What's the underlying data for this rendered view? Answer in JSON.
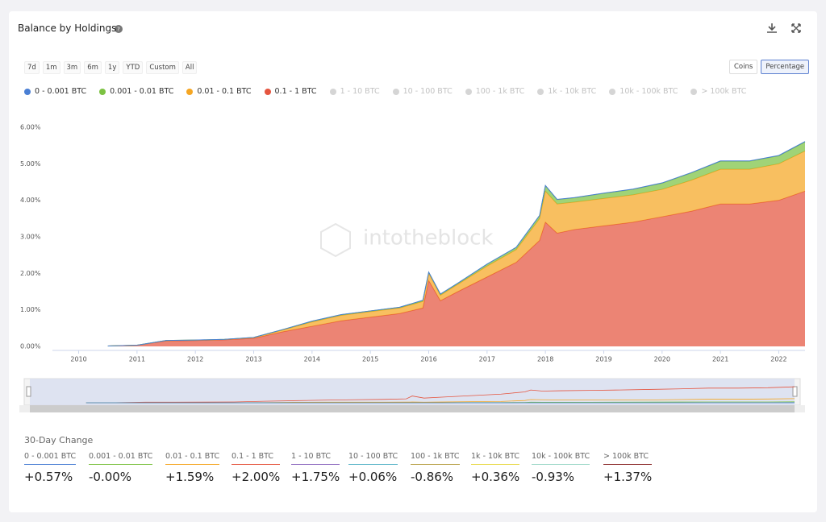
{
  "header": {
    "title": "Balance by Holdings"
  },
  "controls": {
    "ranges": [
      "7d",
      "1m",
      "3m",
      "6m",
      "1y",
      "YTD",
      "Custom",
      "All"
    ],
    "units": [
      "Coins",
      "Percentage"
    ],
    "selected_unit": 1
  },
  "chart_data": {
    "type": "area",
    "stacked": true,
    "watermark": "intotheblock",
    "x": [
      2010.5,
      2011,
      2011.5,
      2012,
      2012.5,
      2013,
      2013.5,
      2014,
      2014.5,
      2015,
      2015.5,
      2015.9,
      2016,
      2016.2,
      2016.5,
      2017,
      2017.5,
      2017.9,
      2018,
      2018.2,
      2018.5,
      2019,
      2019.5,
      2020,
      2020.5,
      2021,
      2021.5,
      2022,
      2022.45
    ],
    "xlim": [
      2009.55,
      2022.45
    ],
    "xticks": [
      2010,
      2011,
      2012,
      2013,
      2014,
      2015,
      2016,
      2017,
      2018,
      2019,
      2020,
      2021,
      2022
    ],
    "ylim": [
      0,
      6
    ],
    "yticks": [
      {
        "value": 0,
        "label": "0.00%"
      },
      {
        "value": 1,
        "label": "1.00%"
      },
      {
        "value": 2,
        "label": "2.00%"
      },
      {
        "value": 3,
        "label": "3.00%"
      },
      {
        "value": 4,
        "label": "4.00%"
      },
      {
        "value": 5,
        "label": "5.00%"
      },
      {
        "value": 6,
        "label": "6.00%"
      }
    ],
    "grid": false,
    "series": [
      {
        "name": "0 - 0.001 BTC",
        "color": "#4a7fd4",
        "values": [
          0,
          0,
          0,
          0.001,
          0.001,
          0.001,
          0.002,
          0.002,
          0.002,
          0.002,
          0.002,
          0.003,
          0.003,
          0.003,
          0.003,
          0.004,
          0.004,
          0.005,
          0.006,
          0.006,
          0.006,
          0.006,
          0.006,
          0.007,
          0.008,
          0.008,
          0.008,
          0.008,
          0.009
        ]
      },
      {
        "name": "0.001 - 0.01 BTC",
        "color": "#7cc242",
        "values": [
          0.001,
          0.001,
          0.002,
          0.003,
          0.003,
          0.005,
          0.01,
          0.02,
          0.02,
          0.02,
          0.02,
          0.03,
          0.03,
          0.03,
          0.03,
          0.05,
          0.06,
          0.08,
          0.15,
          0.12,
          0.12,
          0.14,
          0.15,
          0.17,
          0.2,
          0.22,
          0.22,
          0.22,
          0.25
        ]
      },
      {
        "name": "0.01 - 0.1 BTC",
        "color": "#f5a623",
        "values": [
          0.001,
          0.003,
          0.01,
          0.01,
          0.01,
          0.02,
          0.05,
          0.12,
          0.15,
          0.15,
          0.15,
          0.18,
          0.2,
          0.15,
          0.2,
          0.3,
          0.35,
          0.6,
          0.85,
          0.8,
          0.75,
          0.75,
          0.75,
          0.75,
          0.85,
          0.95,
          0.95,
          1.0,
          1.1
        ]
      },
      {
        "name": "0.1 - 1 BTC",
        "color": "#e5553f",
        "values": [
          0.01,
          0.03,
          0.15,
          0.16,
          0.18,
          0.22,
          0.4,
          0.55,
          0.7,
          0.8,
          0.9,
          1.05,
          1.8,
          1.25,
          1.5,
          1.9,
          2.3,
          2.9,
          3.4,
          3.1,
          3.2,
          3.3,
          3.4,
          3.55,
          3.7,
          3.9,
          3.9,
          4.0,
          4.25
        ]
      }
    ],
    "hidden_series": [
      "1 - 10 BTC",
      "10 - 100 BTC",
      "100 - 1k BTC",
      "1k - 10k BTC",
      "10k - 100k BTC",
      "> 100k BTC"
    ]
  },
  "change_30d": {
    "title": "30-Day Change",
    "items": [
      {
        "label": "0 - 0.001 BTC",
        "value": "+0.57%",
        "color": "#4a7fd4"
      },
      {
        "label": "0.001 - 0.01 BTC",
        "value": "-0.00%",
        "color": "#7cc242"
      },
      {
        "label": "0.01 - 0.1 BTC",
        "value": "+1.59%",
        "color": "#f5a623"
      },
      {
        "label": "0.1 - 1 BTC",
        "value": "+2.00%",
        "color": "#e5553f"
      },
      {
        "label": "1 - 10 BTC",
        "value": "+1.75%",
        "color": "#8e6bbf"
      },
      {
        "label": "10 - 100 BTC",
        "value": "+0.06%",
        "color": "#5bb5c8"
      },
      {
        "label": "100 - 1k BTC",
        "value": "-0.86%",
        "color": "#b8a24a"
      },
      {
        "label": "1k - 10k BTC",
        "value": "+0.36%",
        "color": "#e8d94a"
      },
      {
        "label": "10k - 100k BTC",
        "value": "-0.93%",
        "color": "#9ed8c8"
      },
      {
        "label": "> 100k BTC",
        "value": "+1.37%",
        "color": "#8b2a2a"
      }
    ]
  }
}
